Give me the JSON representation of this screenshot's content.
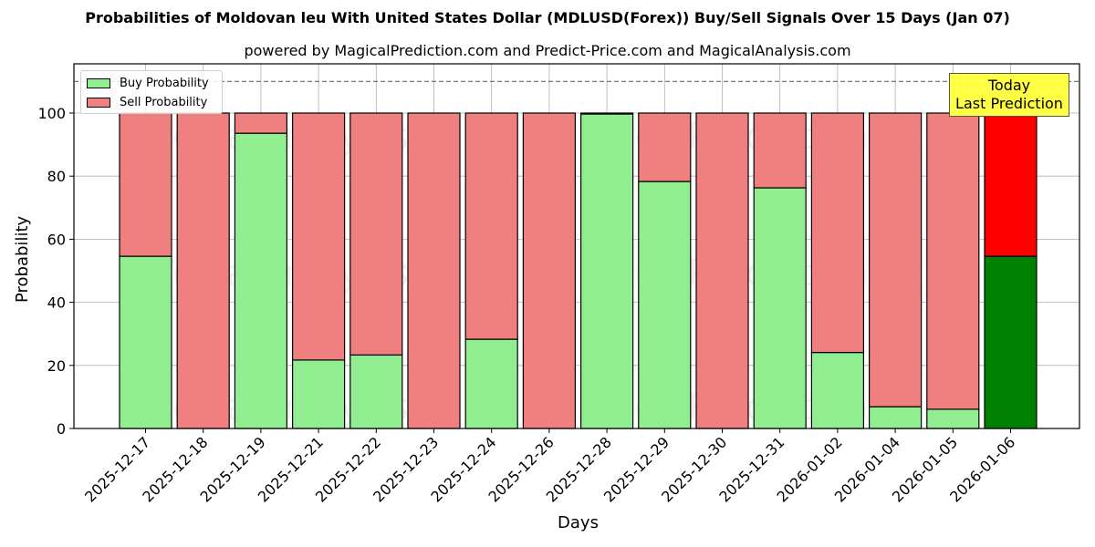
{
  "header": {
    "title": "Probabilities of Moldovan leu With United States Dollar (MDLUSD(Forex)) Buy/Sell Signals Over 15 Days (Jan 07)",
    "subtitle": "powered by MagicalPrediction.com and Predict-Price.com and MagicalAnalysis.com"
  },
  "legend": {
    "buy_label": "Buy Probability",
    "sell_label": "Sell Probability"
  },
  "annotation": {
    "line1": "Today",
    "line2": "Last Prediction"
  },
  "axes": {
    "xlabel": "Days",
    "ylabel": "Probability",
    "yticks": [
      "0",
      "20",
      "40",
      "60",
      "80",
      "100"
    ]
  },
  "watermarks": [
    "MagicalAnalysis.com",
    "MagicalPrediction.com"
  ],
  "colors": {
    "buy": "#90ee90",
    "sell": "#f08080",
    "today_buy": "#008000",
    "today_sell": "#ff0000",
    "annotation_bg": "#ffff44"
  },
  "chart_data": {
    "type": "bar",
    "stacked": true,
    "title": "Probabilities of Moldovan leu With United States Dollar (MDLUSD(Forex)) Buy/Sell Signals Over 15 Days (Jan 07)",
    "subtitle": "powered by MagicalPrediction.com and Predict-Price.com and MagicalAnalysis.com",
    "xlabel": "Days",
    "ylabel": "Probability",
    "ylim": [
      0,
      115
    ],
    "yticks": [
      0,
      20,
      40,
      60,
      80,
      100
    ],
    "reference_line": 110,
    "grid": true,
    "legend_position": "upper left",
    "categories": [
      "2025-12-17",
      "2025-12-18",
      "2025-12-19",
      "2025-12-21",
      "2025-12-22",
      "2025-12-23",
      "2025-12-24",
      "2025-12-26",
      "2025-12-28",
      "2025-12-29",
      "2025-12-30",
      "2025-12-31",
      "2026-01-02",
      "2026-01-04",
      "2026-01-05",
      "2026-01-06"
    ],
    "series": [
      {
        "name": "Buy Probability",
        "values": [
          54.6,
          0,
          93.6,
          21.7,
          23.3,
          0,
          28.3,
          0,
          99.7,
          78.3,
          0,
          76.3,
          24.1,
          6.9,
          6.1,
          54.6
        ]
      },
      {
        "name": "Sell Probability",
        "values": [
          45.4,
          100,
          6.4,
          78.3,
          76.7,
          100,
          71.7,
          100,
          0.3,
          21.7,
          100,
          23.7,
          75.9,
          93.1,
          93.9,
          45.4
        ]
      }
    ],
    "annotations": [
      {
        "text": "Today\nLast Prediction",
        "x": "2026-01-06"
      }
    ]
  }
}
